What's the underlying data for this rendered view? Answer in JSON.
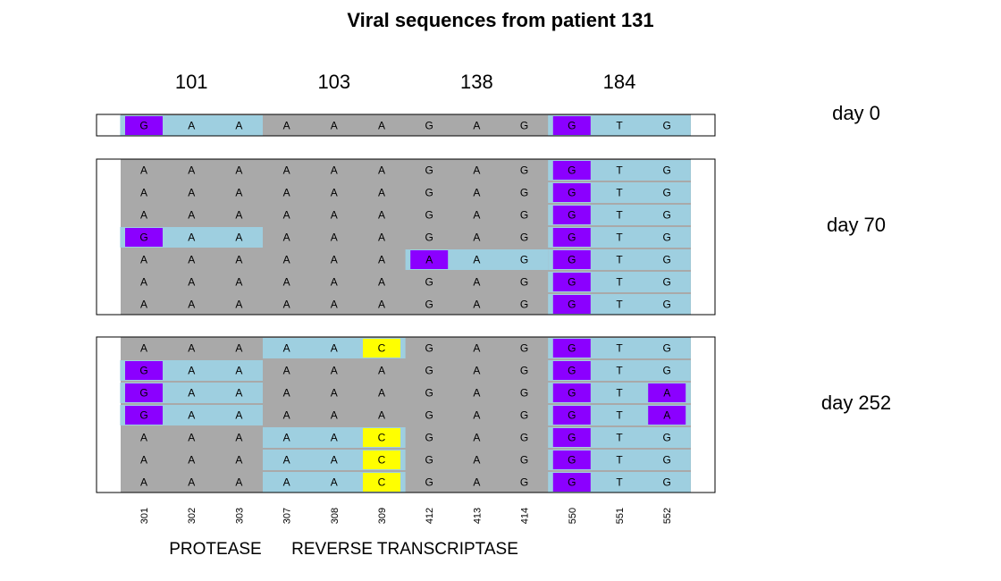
{
  "title": "Viral sequences from patient 131",
  "colors": {
    "background_cell": "#a9a9a9",
    "mutation_block": "#9ecfe0",
    "purple": "#8b00ff",
    "yellow": "#ffff00",
    "frame": "#000000"
  },
  "chart_data": {
    "type": "heatmap",
    "title": "Viral sequences from patient 131",
    "codon_labels": [
      "101",
      "103",
      "138",
      "184"
    ],
    "positions": [
      "301",
      "302",
      "303",
      "307",
      "308",
      "309",
      "412",
      "413",
      "414",
      "550",
      "551",
      "552"
    ],
    "regions": [
      "PROTEASE",
      "REVERSE TRANSCRIPTASE"
    ],
    "legend": "none",
    "samples": [
      {
        "label": "day 0",
        "rows": [
          {
            "bases": [
              "G",
              "A",
              "A",
              "A",
              "A",
              "A",
              "G",
              "A",
              "G",
              "G",
              "T",
              "G"
            ],
            "highlight": [
              0,
              1,
              2,
              9,
              10,
              11
            ],
            "marked": {
              "0": "purple",
              "9": "purple"
            }
          }
        ]
      },
      {
        "label": "day 70",
        "rows": [
          {
            "bases": [
              "A",
              "A",
              "A",
              "A",
              "A",
              "A",
              "G",
              "A",
              "G",
              "G",
              "T",
              "G"
            ],
            "highlight": [
              9,
              10,
              11
            ],
            "marked": {
              "9": "purple"
            }
          },
          {
            "bases": [
              "A",
              "A",
              "A",
              "A",
              "A",
              "A",
              "G",
              "A",
              "G",
              "G",
              "T",
              "G"
            ],
            "highlight": [
              9,
              10,
              11
            ],
            "marked": {
              "9": "purple"
            }
          },
          {
            "bases": [
              "A",
              "A",
              "A",
              "A",
              "A",
              "A",
              "G",
              "A",
              "G",
              "G",
              "T",
              "G"
            ],
            "highlight": [
              9,
              10,
              11
            ],
            "marked": {
              "9": "purple"
            }
          },
          {
            "bases": [
              "G",
              "A",
              "A",
              "A",
              "A",
              "A",
              "G",
              "A",
              "G",
              "G",
              "T",
              "G"
            ],
            "highlight": [
              0,
              1,
              2,
              9,
              10,
              11
            ],
            "marked": {
              "0": "purple",
              "9": "purple"
            }
          },
          {
            "bases": [
              "A",
              "A",
              "A",
              "A",
              "A",
              "A",
              "A",
              "A",
              "G",
              "G",
              "T",
              "G"
            ],
            "highlight": [
              6,
              7,
              8,
              9,
              10,
              11
            ],
            "marked": {
              "6": "purple",
              "9": "purple"
            }
          },
          {
            "bases": [
              "A",
              "A",
              "A",
              "A",
              "A",
              "A",
              "G",
              "A",
              "G",
              "G",
              "T",
              "G"
            ],
            "highlight": [
              9,
              10,
              11
            ],
            "marked": {
              "9": "purple"
            }
          },
          {
            "bases": [
              "A",
              "A",
              "A",
              "A",
              "A",
              "A",
              "G",
              "A",
              "G",
              "G",
              "T",
              "G"
            ],
            "highlight": [
              9,
              10,
              11
            ],
            "marked": {
              "9": "purple"
            }
          }
        ]
      },
      {
        "label": "day 252",
        "rows": [
          {
            "bases": [
              "A",
              "A",
              "A",
              "A",
              "A",
              "C",
              "G",
              "A",
              "G",
              "G",
              "T",
              "G"
            ],
            "highlight": [
              3,
              4,
              5,
              9,
              10,
              11
            ],
            "marked": {
              "5": "yellow",
              "9": "purple"
            }
          },
          {
            "bases": [
              "G",
              "A",
              "A",
              "A",
              "A",
              "A",
              "G",
              "A",
              "G",
              "G",
              "T",
              "G"
            ],
            "highlight": [
              0,
              1,
              2,
              9,
              10,
              11
            ],
            "marked": {
              "0": "purple",
              "9": "purple"
            }
          },
          {
            "bases": [
              "G",
              "A",
              "A",
              "A",
              "A",
              "A",
              "G",
              "A",
              "G",
              "G",
              "T",
              "A"
            ],
            "highlight": [
              0,
              1,
              2,
              9,
              10,
              11
            ],
            "marked": {
              "0": "purple",
              "9": "purple",
              "11": "purple"
            }
          },
          {
            "bases": [
              "G",
              "A",
              "A",
              "A",
              "A",
              "A",
              "G",
              "A",
              "G",
              "G",
              "T",
              "A"
            ],
            "highlight": [
              0,
              1,
              2,
              9,
              10,
              11
            ],
            "marked": {
              "0": "purple",
              "9": "purple",
              "11": "purple"
            }
          },
          {
            "bases": [
              "A",
              "A",
              "A",
              "A",
              "A",
              "C",
              "G",
              "A",
              "G",
              "G",
              "T",
              "G"
            ],
            "highlight": [
              3,
              4,
              5,
              9,
              10,
              11
            ],
            "marked": {
              "5": "yellow",
              "9": "purple"
            }
          },
          {
            "bases": [
              "A",
              "A",
              "A",
              "A",
              "A",
              "C",
              "G",
              "A",
              "G",
              "G",
              "T",
              "G"
            ],
            "highlight": [
              3,
              4,
              5,
              9,
              10,
              11
            ],
            "marked": {
              "5": "yellow",
              "9": "purple"
            }
          },
          {
            "bases": [
              "A",
              "A",
              "A",
              "A",
              "A",
              "C",
              "G",
              "A",
              "G",
              "G",
              "T",
              "G"
            ],
            "highlight": [
              3,
              4,
              5,
              9,
              10,
              11
            ],
            "marked": {
              "5": "yellow",
              "9": "purple"
            }
          }
        ]
      }
    ]
  }
}
